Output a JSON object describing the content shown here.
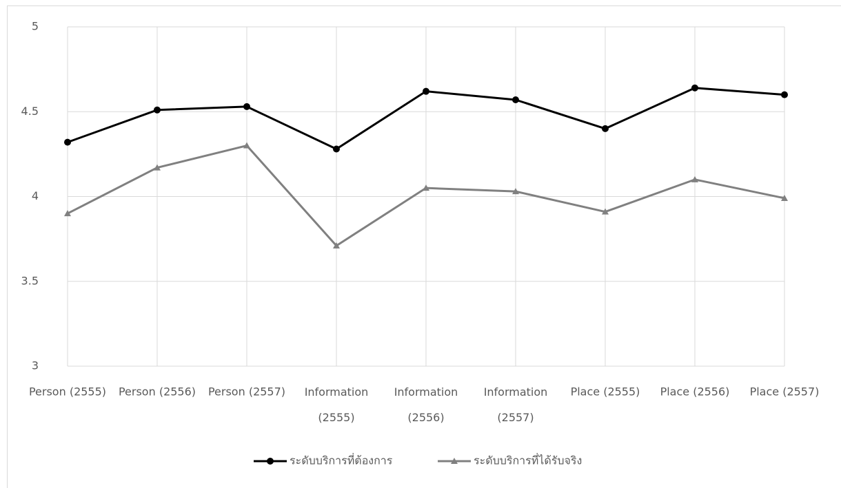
{
  "chart_data": {
    "type": "line",
    "categories": [
      "Person (2555)",
      "Person (2556)",
      "Person (2557)",
      "Information (2555)",
      "Information (2556)",
      "Information (2557)",
      "Place (2555)",
      "Place (2556)",
      "Place (2557)"
    ],
    "series": [
      {
        "name": "ระดับบริการที่ต้องการ",
        "color": "#000000",
        "marker": "circle",
        "values": [
          4.32,
          4.51,
          4.53,
          4.28,
          4.62,
          4.57,
          4.4,
          4.64,
          4.6
        ]
      },
      {
        "name": "ระดับบริการที่ได้รับจริง",
        "color": "#808080",
        "marker": "triangle",
        "values": [
          3.9,
          4.17,
          4.3,
          3.71,
          4.05,
          4.03,
          3.91,
          4.1,
          3.99
        ]
      }
    ],
    "ylim": [
      3,
      5
    ],
    "yticks": [
      3,
      3.5,
      4,
      4.5,
      5
    ],
    "grid": true,
    "legend": "bottom"
  }
}
